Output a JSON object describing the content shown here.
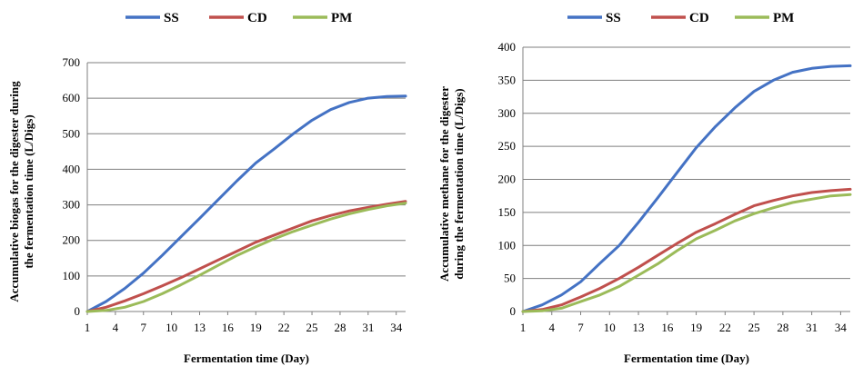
{
  "colors": {
    "SS": "#4472C4",
    "CD": "#C0504D",
    "PM": "#9BBB59",
    "grid": "#7f7f7f",
    "axis": "#7f7f7f"
  },
  "chart_data": [
    {
      "type": "line",
      "title": "",
      "xlabel": "Fermentation  time (Day)",
      "ylabel": [
        "Accumulative  biogas  for  the  digester  during",
        "the  fermentation  time  (L/Digs)"
      ],
      "x_ticks": [
        "1",
        "4",
        "7",
        "10",
        "13",
        "16",
        "19",
        "22",
        "25",
        "28",
        "31",
        "34"
      ],
      "xlim": [
        1,
        35
      ],
      "ylim": [
        0,
        700
      ],
      "y_ticks": [
        "0",
        "100",
        "200",
        "300",
        "400",
        "500",
        "600",
        "700"
      ],
      "grid": true,
      "legend_position": "top",
      "x": [
        1,
        3,
        5,
        7,
        9,
        11,
        13,
        15,
        17,
        19,
        21,
        23,
        25,
        27,
        29,
        31,
        33,
        35
      ],
      "series": [
        {
          "name": "SS",
          "color": "#4472C4",
          "values": [
            0,
            28,
            65,
            108,
            158,
            210,
            262,
            315,
            368,
            418,
            458,
            500,
            538,
            568,
            588,
            600,
            605,
            606
          ]
        },
        {
          "name": "CD",
          "color": "#C0504D",
          "values": [
            0,
            12,
            30,
            50,
            72,
            95,
            120,
            145,
            170,
            195,
            215,
            235,
            255,
            270,
            283,
            293,
            302,
            310
          ]
        },
        {
          "name": "PM",
          "color": "#9BBB59",
          "values": [
            0,
            3,
            12,
            28,
            50,
            75,
            102,
            130,
            158,
            182,
            205,
            225,
            243,
            260,
            275,
            287,
            297,
            305
          ]
        }
      ]
    },
    {
      "type": "line",
      "title": "",
      "xlabel": "Fermentation  time (Day)",
      "ylabel": [
        "Accumulative  methane  for  the  digester",
        "during  the  fermentation  time  (L/Digs)"
      ],
      "x_ticks": [
        "1",
        "4",
        "7",
        "10",
        "13",
        "16",
        "19",
        "22",
        "25",
        "28",
        "31",
        "34"
      ],
      "xlim": [
        1,
        35
      ],
      "ylim": [
        0,
        400
      ],
      "y_ticks": [
        "0",
        "50",
        "100",
        "150",
        "200",
        "250",
        "300",
        "350",
        "400"
      ],
      "grid": true,
      "legend_position": "top",
      "x": [
        1,
        3,
        5,
        7,
        9,
        11,
        13,
        15,
        17,
        19,
        21,
        23,
        25,
        27,
        29,
        31,
        33,
        35
      ],
      "series": [
        {
          "name": "SS",
          "color": "#4472C4",
          "values": [
            0,
            10,
            25,
            45,
            73,
            100,
            135,
            172,
            210,
            248,
            280,
            308,
            333,
            350,
            362,
            368,
            371,
            372
          ]
        },
        {
          "name": "CD",
          "color": "#C0504D",
          "values": [
            0,
            3,
            10,
            22,
            35,
            50,
            67,
            85,
            103,
            120,
            133,
            147,
            160,
            168,
            175,
            180,
            183,
            185
          ]
        },
        {
          "name": "PM",
          "color": "#9BBB59",
          "values": [
            0,
            1,
            5,
            15,
            25,
            38,
            55,
            72,
            92,
            110,
            123,
            137,
            148,
            157,
            165,
            170,
            175,
            177
          ]
        }
      ]
    }
  ]
}
